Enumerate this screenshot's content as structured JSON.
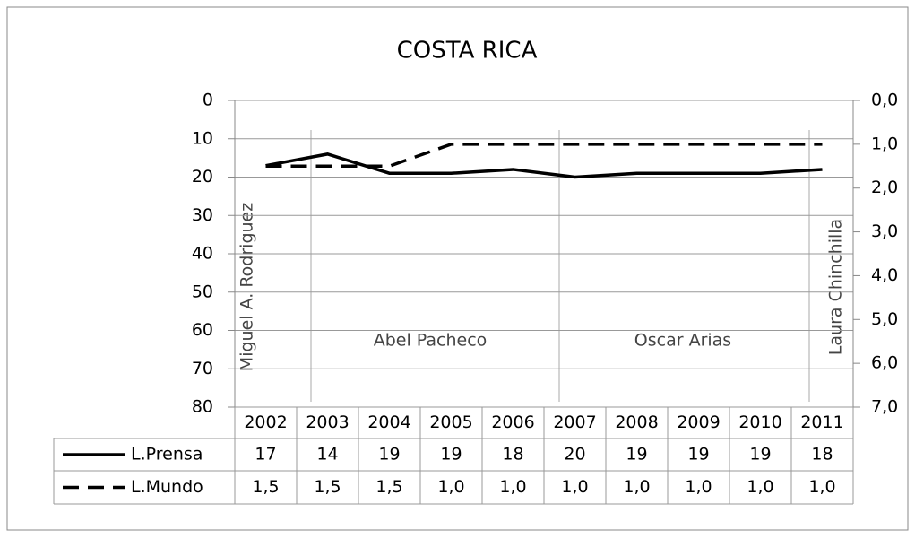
{
  "chart_data": {
    "type": "line",
    "title": "COSTA RICA",
    "categories": [
      "2002",
      "2003",
      "2004",
      "2005",
      "2006",
      "2007",
      "2008",
      "2009",
      "2010",
      "2011"
    ],
    "series": [
      {
        "name": "L.Prensa",
        "color": "#000000",
        "line_style": "solid",
        "values": [
          17,
          14,
          19,
          19,
          18,
          20,
          19,
          19,
          19,
          18
        ]
      },
      {
        "name": "L.Mundo",
        "color": "#000000",
        "line_style": "dashed",
        "axis": "y2",
        "values": [
          1.5,
          1.5,
          1.5,
          1.0,
          1.0,
          1.0,
          1.0,
          1.0,
          1.0,
          1.0
        ],
        "value_labels": [
          "1,5",
          "1,5",
          "1,5",
          "1,0",
          "1,0",
          "1,0",
          "1,0",
          "1,0",
          "1,0",
          "1,0"
        ]
      }
    ],
    "ylim": [
      0,
      80
    ],
    "yticks": [
      0,
      10,
      20,
      30,
      40,
      50,
      60,
      70,
      80
    ],
    "y_reversed": true,
    "y2lim": [
      0,
      7
    ],
    "y2ticks": [
      {
        "value": 0,
        "label": "0,0"
      },
      {
        "value": 1,
        "label": "1,0"
      },
      {
        "value": 2,
        "label": "2,0"
      },
      {
        "value": 3,
        "label": "3,0"
      },
      {
        "value": 4,
        "label": "4,0"
      },
      {
        "value": 5,
        "label": "5,0"
      },
      {
        "value": 6,
        "label": "6,0"
      },
      {
        "value": 7,
        "label": "7,0"
      }
    ],
    "y2_reversed": true,
    "grid": true,
    "annotations": [
      "Miguel A. Rodriguez",
      "Abel Pacheco",
      "Oscar Arias",
      "Laura Chinchilla"
    ]
  }
}
